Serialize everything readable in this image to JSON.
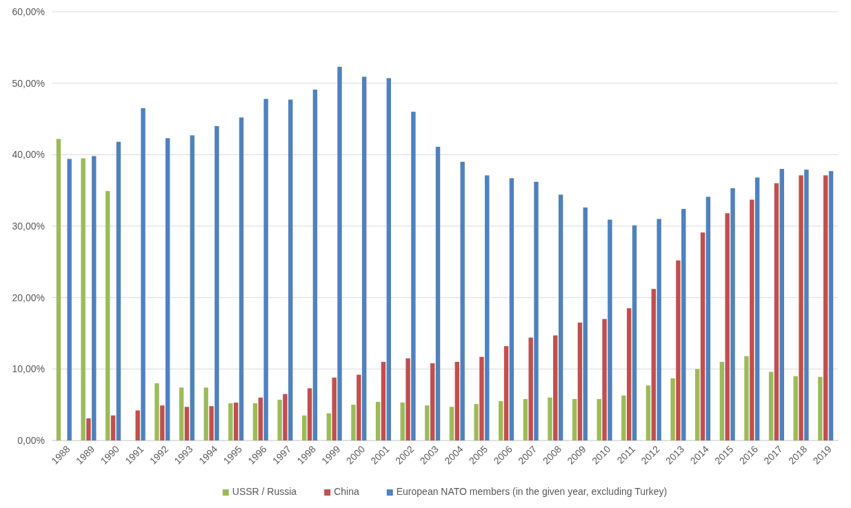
{
  "chart_data": {
    "type": "bar",
    "categories": [
      "1988",
      "1989",
      "1990",
      "1991",
      "1992",
      "1993",
      "1994",
      "1995",
      "1996",
      "1997",
      "1998",
      "1999",
      "2000",
      "2001",
      "2002",
      "2003",
      "2004",
      "2005",
      "2006",
      "2007",
      "2008",
      "2009",
      "2010",
      "2011",
      "2012",
      "2013",
      "2014",
      "2015",
      "2016",
      "2017",
      "2018",
      "2019"
    ],
    "series": [
      {
        "name": "USSR / Russia",
        "color": "#9bbb59",
        "values": [
          42.2,
          39.5,
          34.9,
          null,
          8.0,
          7.4,
          7.4,
          5.2,
          5.2,
          5.7,
          3.5,
          3.8,
          5.0,
          5.4,
          5.3,
          4.9,
          4.7,
          5.1,
          5.5,
          5.8,
          6.0,
          5.8,
          5.8,
          6.3,
          7.7,
          8.7,
          10.0,
          11.0,
          11.8,
          9.6,
          9.0,
          8.9
        ]
      },
      {
        "name": "China",
        "color": "#c0504d",
        "values": [
          null,
          3.1,
          3.5,
          4.2,
          4.9,
          4.7,
          4.8,
          5.3,
          6.0,
          6.5,
          7.3,
          8.8,
          9.2,
          11.0,
          11.5,
          10.8,
          11.0,
          11.7,
          13.2,
          14.4,
          14.7,
          16.5,
          17.0,
          18.5,
          21.2,
          25.2,
          29.1,
          31.8,
          33.7,
          36.0,
          37.1,
          37.1
        ]
      },
      {
        "name": "European NATO members (in the given year, excluding Turkey)",
        "color": "#4f81bd",
        "values": [
          39.4,
          39.8,
          41.8,
          46.5,
          42.3,
          42.7,
          44.0,
          45.2,
          47.8,
          47.7,
          49.1,
          52.3,
          50.9,
          50.7,
          46.0,
          41.1,
          39.0,
          37.1,
          36.7,
          36.2,
          34.4,
          32.6,
          30.9,
          30.1,
          31.0,
          32.4,
          34.1,
          35.3,
          36.8,
          38.0,
          37.9,
          37.7
        ]
      }
    ],
    "ylim": [
      0,
      60
    ],
    "yticks": [
      {
        "value": 0,
        "label": "0,00%"
      },
      {
        "value": 10,
        "label": "10,00%"
      },
      {
        "value": 20,
        "label": "20,00%"
      },
      {
        "value": 30,
        "label": "30,00%"
      },
      {
        "value": 40,
        "label": "40,00%"
      },
      {
        "value": 50,
        "label": "50,00%"
      },
      {
        "value": 60,
        "label": "60,00%"
      }
    ],
    "grid": "y",
    "legend": "bottom"
  }
}
